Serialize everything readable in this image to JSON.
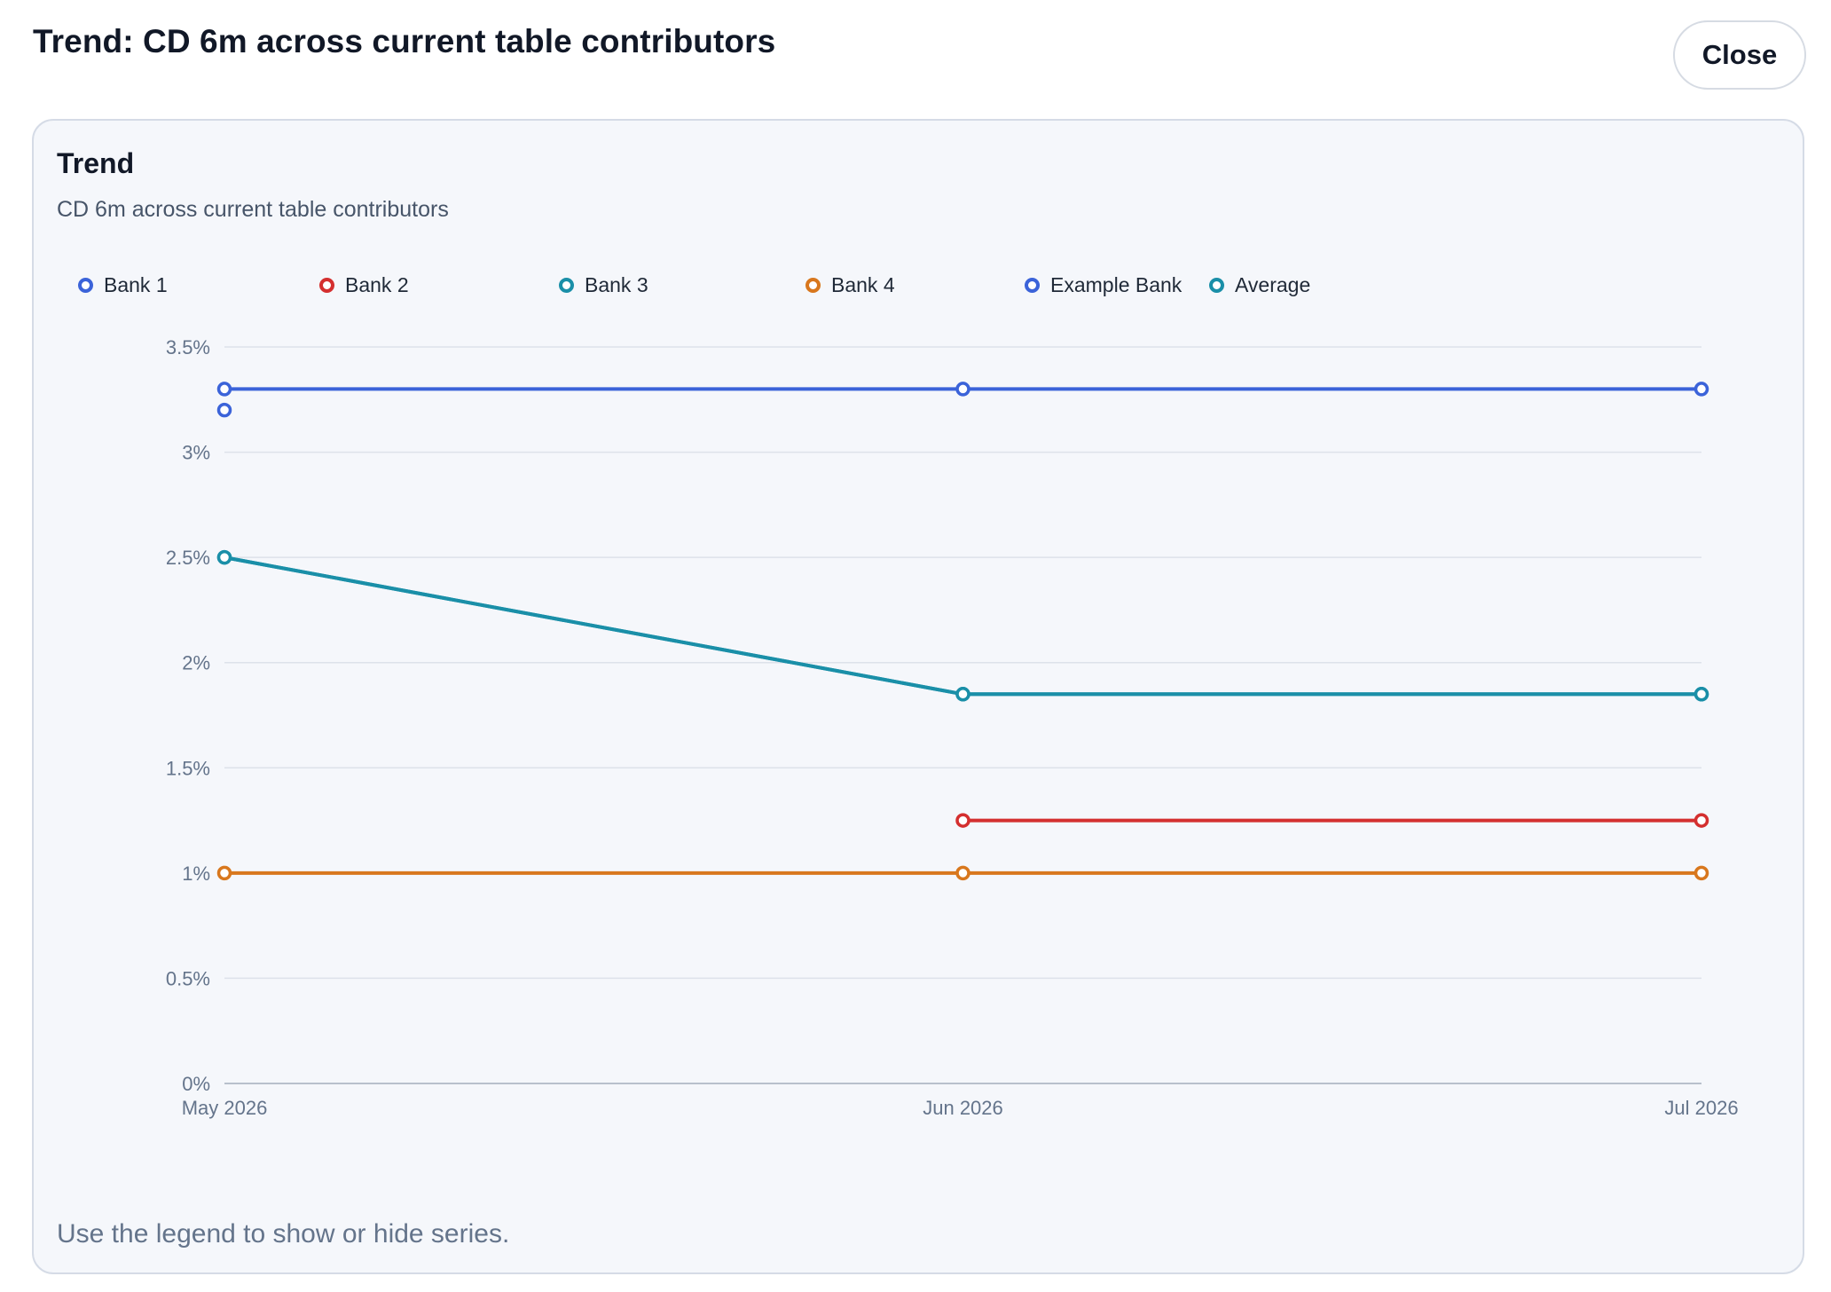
{
  "header": {
    "title": "Trend: CD 6m across current table contributors",
    "close_label": "Close"
  },
  "card": {
    "title": "Trend",
    "subtitle": "CD 6m across current table contributors",
    "footer_note": "Use the legend to show or hide series."
  },
  "chart_data": {
    "type": "line",
    "title": "Trend",
    "subtitle": "CD 6m across current table contributors",
    "xlabel": "",
    "ylabel": "",
    "x": [
      "May 2026",
      "Jun 2026",
      "Jul 2026"
    ],
    "yticks": [
      "0%",
      "0.5%",
      "1%",
      "1.5%",
      "2%",
      "2.5%",
      "3%",
      "3.5%"
    ],
    "ylim": [
      0,
      3.5
    ],
    "y_unit": "%",
    "grid": true,
    "legend_position": "top-left",
    "series": [
      {
        "name": "Bank 1",
        "color": "#3b63d9",
        "values": [
          3.3,
          3.3,
          3.3
        ]
      },
      {
        "name": "Bank 2",
        "color": "#d42f2f",
        "values": [
          null,
          1.25,
          1.25
        ]
      },
      {
        "name": "Bank 3",
        "color": "#1a8fa8",
        "values": [
          2.5,
          1.85,
          1.85
        ]
      },
      {
        "name": "Bank 4",
        "color": "#d8771d",
        "values": [
          1.0,
          1.0,
          1.0
        ]
      },
      {
        "name": "Example Bank",
        "color": "#3b63d9",
        "values": [
          3.2,
          null,
          null
        ]
      },
      {
        "name": "Average",
        "color": "#1a8fa8",
        "values": [
          2.5,
          1.85,
          1.85
        ]
      }
    ]
  }
}
